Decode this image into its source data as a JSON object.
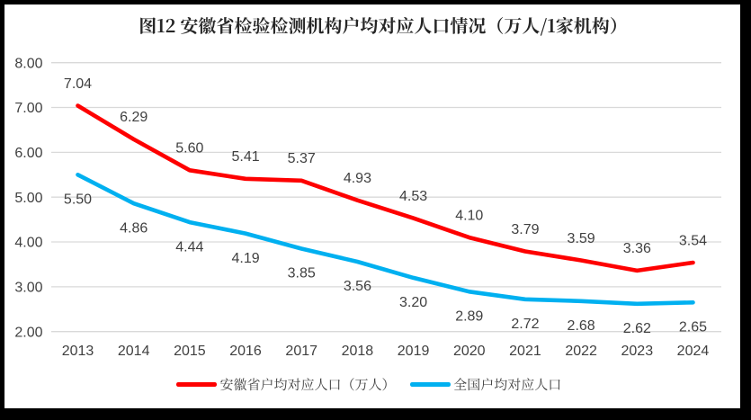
{
  "colors": {
    "canvas_background": "#000000",
    "chart_background": "#FFFFFF",
    "gridline": "#D9D9D9",
    "axis_text": "#404040",
    "title_text": "#262626"
  },
  "chart_data": {
    "type": "line",
    "title": "图12 安徽省检验检测机构户均对应人口情况（万人/1家机构）",
    "categories": [
      "2013",
      "2014",
      "2015",
      "2016",
      "2017",
      "2018",
      "2019",
      "2020",
      "2021",
      "2022",
      "2023",
      "2024"
    ],
    "series": [
      {
        "name": "安徽省户均对应人口（万人）",
        "color": "#FE0000",
        "label_position": "above",
        "values": [
          7.04,
          6.29,
          5.6,
          5.41,
          5.37,
          4.93,
          4.53,
          4.1,
          3.79,
          3.59,
          3.36,
          3.54
        ]
      },
      {
        "name": "全国户均对应人口",
        "color": "#00B0F0",
        "label_position": "below",
        "values": [
          5.5,
          4.86,
          4.44,
          4.19,
          3.85,
          3.56,
          3.2,
          2.89,
          2.72,
          2.68,
          2.62,
          2.65
        ]
      }
    ],
    "xlabel": "",
    "ylabel": "",
    "ylim": [
      2,
      8
    ],
    "y_tick_step": 1,
    "y_tick_labels": [
      "8.00",
      "7.00",
      "6.00",
      "5.00",
      "4.00",
      "3.00",
      "2.00"
    ],
    "grid": true,
    "legend_position": "bottom"
  }
}
